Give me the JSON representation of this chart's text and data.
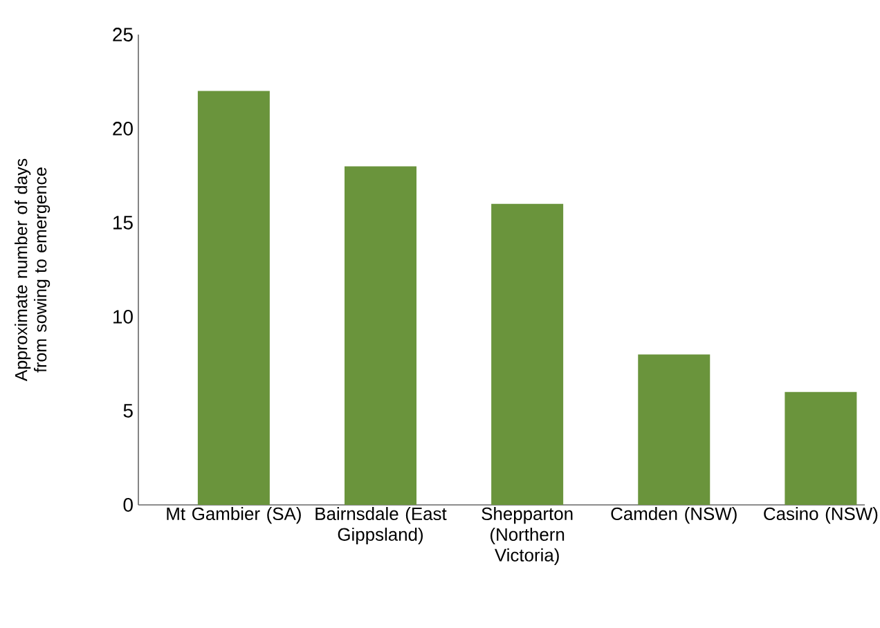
{
  "chart_data": {
    "type": "bar",
    "ylabel": "Approximate number of days from sowing to emergence",
    "categories": [
      "Mt Gambier (SA)",
      "Bairnsdale (East Gippsland)",
      "Shepparton (Northern Victoria)",
      "Camden (NSW)",
      "Casino (NSW)"
    ],
    "values": [
      22,
      18,
      16,
      8,
      6
    ],
    "color": "#6a943c",
    "ylim": [
      0,
      25
    ],
    "yticks": [
      0,
      5,
      10,
      15,
      20,
      25
    ],
    "grid": false
  }
}
